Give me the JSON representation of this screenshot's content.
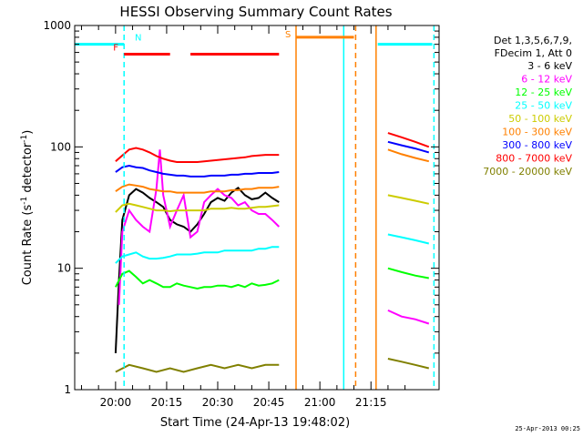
{
  "chart_data": {
    "type": "line",
    "title": "HESSI Observing Summary Count Rates",
    "xlabel": "Start Time (24-Apr-13 19:48:02)",
    "ylabel": "Count Rate (s",
    "ylabel_sup": "-1",
    "ylabel_mid": " detector",
    "ylabel_end": ")",
    "y_scale": "log",
    "ylim": [
      1,
      1000
    ],
    "y_ticks": [
      {
        "value": 1,
        "label": "1"
      },
      {
        "value": 10,
        "label": "10"
      },
      {
        "value": 100,
        "label": "100"
      },
      {
        "value": 1000,
        "label": "1000"
      }
    ],
    "xlim_minutes": [
      -12,
      95
    ],
    "x_ticks": [
      {
        "minutes": 0,
        "label": "20:00"
      },
      {
        "minutes": 15,
        "label": "20:15"
      },
      {
        "minutes": 30,
        "label": "20:30"
      },
      {
        "minutes": 45,
        "label": "20:45"
      },
      {
        "minutes": 60,
        "label": "21:00"
      },
      {
        "minutes": 75,
        "label": "21:15"
      }
    ],
    "legend_header": [
      "Det 1,3,5,6,7,9,",
      "FDecim 1, Att 0"
    ],
    "legend_placement": "top-right",
    "footer": "25-Apr-2013 00:25",
    "series": [
      {
        "name": "3 - 6 keV",
        "color": "#000000",
        "points": [
          [
            0,
            2
          ],
          [
            1,
            8
          ],
          [
            2,
            25
          ],
          [
            4,
            40
          ],
          [
            6,
            45
          ],
          [
            8,
            42
          ],
          [
            10,
            38
          ],
          [
            12,
            35
          ],
          [
            14,
            32
          ],
          [
            16,
            25
          ],
          [
            18,
            23
          ],
          [
            20,
            22
          ],
          [
            22,
            20
          ],
          [
            24,
            23
          ],
          [
            26,
            28
          ],
          [
            28,
            35
          ],
          [
            30,
            38
          ],
          [
            32,
            36
          ],
          [
            34,
            42
          ],
          [
            36,
            46
          ],
          [
            38,
            40
          ],
          [
            40,
            37
          ],
          [
            42,
            38
          ],
          [
            44,
            42
          ],
          [
            46,
            38
          ],
          [
            48,
            35
          ]
        ]
      },
      {
        "name": "6 - 12 keV",
        "color": "#ff00ff",
        "points": [
          [
            1,
            5
          ],
          [
            2,
            20
          ],
          [
            4,
            30
          ],
          [
            6,
            25
          ],
          [
            8,
            22
          ],
          [
            10,
            20
          ],
          [
            12,
            45
          ],
          [
            13,
            95
          ],
          [
            14,
            40
          ],
          [
            16,
            22
          ],
          [
            18,
            30
          ],
          [
            20,
            40
          ],
          [
            22,
            18
          ],
          [
            24,
            20
          ],
          [
            26,
            35
          ],
          [
            28,
            40
          ],
          [
            30,
            45
          ],
          [
            32,
            40
          ],
          [
            34,
            38
          ],
          [
            36,
            33
          ],
          [
            38,
            35
          ],
          [
            40,
            30
          ],
          [
            42,
            28
          ],
          [
            44,
            28
          ],
          [
            46,
            25
          ],
          [
            48,
            22
          ]
        ]
      },
      {
        "name": "12 - 25 keV",
        "color": "#00ff00",
        "points": [
          [
            0,
            7
          ],
          [
            2,
            9
          ],
          [
            4,
            9.5
          ],
          [
            6,
            8.5
          ],
          [
            8,
            7.5
          ],
          [
            10,
            8
          ],
          [
            12,
            7.5
          ],
          [
            14,
            7
          ],
          [
            16,
            7
          ],
          [
            18,
            7.5
          ],
          [
            20,
            7.2
          ],
          [
            22,
            7
          ],
          [
            24,
            6.8
          ],
          [
            26,
            7
          ],
          [
            28,
            7
          ],
          [
            30,
            7.2
          ],
          [
            32,
            7.2
          ],
          [
            34,
            7
          ],
          [
            36,
            7.3
          ],
          [
            38,
            7
          ],
          [
            40,
            7.5
          ],
          [
            42,
            7.2
          ],
          [
            44,
            7.3
          ],
          [
            46,
            7.5
          ],
          [
            48,
            8
          ]
        ]
      },
      {
        "name": "25 - 50 keV",
        "color": "#00ffff",
        "points": [
          [
            0,
            11
          ],
          [
            2,
            12.5
          ],
          [
            4,
            13
          ],
          [
            6,
            13.5
          ],
          [
            8,
            12.5
          ],
          [
            10,
            12
          ],
          [
            12,
            12
          ],
          [
            14,
            12.2
          ],
          [
            16,
            12.5
          ],
          [
            18,
            13
          ],
          [
            20,
            13
          ],
          [
            22,
            13
          ],
          [
            24,
            13.2
          ],
          [
            26,
            13.5
          ],
          [
            28,
            13.5
          ],
          [
            30,
            13.5
          ],
          [
            32,
            14
          ],
          [
            34,
            14
          ],
          [
            36,
            14
          ],
          [
            38,
            14
          ],
          [
            40,
            14
          ],
          [
            42,
            14.5
          ],
          [
            44,
            14.5
          ],
          [
            46,
            15
          ],
          [
            48,
            15
          ]
        ]
      },
      {
        "name": "50 - 100 keV",
        "color": "#cccc00",
        "points": [
          [
            0,
            29
          ],
          [
            2,
            33
          ],
          [
            4,
            34
          ],
          [
            6,
            33
          ],
          [
            8,
            32
          ],
          [
            10,
            31
          ],
          [
            12,
            30
          ],
          [
            14,
            30
          ],
          [
            16,
            29.5
          ],
          [
            18,
            30
          ],
          [
            20,
            30
          ],
          [
            22,
            30
          ],
          [
            24,
            30
          ],
          [
            26,
            30
          ],
          [
            28,
            31
          ],
          [
            30,
            31
          ],
          [
            32,
            31
          ],
          [
            34,
            31.5
          ],
          [
            36,
            31
          ],
          [
            38,
            31
          ],
          [
            40,
            31.5
          ],
          [
            42,
            32
          ],
          [
            44,
            32
          ],
          [
            46,
            32.5
          ],
          [
            48,
            33
          ]
        ]
      },
      {
        "name": "100 - 300 keV",
        "color": "#ff8000",
        "points": [
          [
            0,
            43
          ],
          [
            2,
            47
          ],
          [
            4,
            49
          ],
          [
            6,
            48
          ],
          [
            8,
            47
          ],
          [
            10,
            45
          ],
          [
            12,
            44
          ],
          [
            14,
            43
          ],
          [
            16,
            43
          ],
          [
            18,
            42
          ],
          [
            20,
            42
          ],
          [
            22,
            42
          ],
          [
            24,
            42
          ],
          [
            26,
            42
          ],
          [
            28,
            43
          ],
          [
            30,
            43
          ],
          [
            32,
            43
          ],
          [
            34,
            44
          ],
          [
            36,
            44
          ],
          [
            38,
            45
          ],
          [
            40,
            45
          ],
          [
            42,
            46
          ],
          [
            44,
            46
          ],
          [
            46,
            46
          ],
          [
            48,
            47
          ]
        ]
      },
      {
        "name": "300 - 800 keV",
        "color": "#0000ff",
        "points": [
          [
            0,
            62
          ],
          [
            2,
            68
          ],
          [
            4,
            70
          ],
          [
            6,
            68
          ],
          [
            8,
            67
          ],
          [
            10,
            64
          ],
          [
            12,
            62
          ],
          [
            14,
            60
          ],
          [
            16,
            59
          ],
          [
            18,
            58
          ],
          [
            20,
            58
          ],
          [
            22,
            57
          ],
          [
            24,
            57
          ],
          [
            26,
            57
          ],
          [
            28,
            58
          ],
          [
            30,
            58
          ],
          [
            32,
            58
          ],
          [
            34,
            59
          ],
          [
            36,
            59
          ],
          [
            38,
            60
          ],
          [
            40,
            60
          ],
          [
            42,
            61
          ],
          [
            44,
            61
          ],
          [
            46,
            61
          ],
          [
            48,
            62
          ]
        ]
      },
      {
        "name": "800 - 7000 keV",
        "color": "#ff0000",
        "points": [
          [
            0,
            76
          ],
          [
            2,
            85
          ],
          [
            4,
            95
          ],
          [
            6,
            98
          ],
          [
            8,
            95
          ],
          [
            10,
            90
          ],
          [
            12,
            84
          ],
          [
            14,
            80
          ],
          [
            16,
            77
          ],
          [
            18,
            75
          ],
          [
            20,
            75
          ],
          [
            22,
            75
          ],
          [
            24,
            75
          ],
          [
            26,
            76
          ],
          [
            28,
            77
          ],
          [
            30,
            78
          ],
          [
            32,
            79
          ],
          [
            34,
            80
          ],
          [
            36,
            81
          ],
          [
            38,
            82
          ],
          [
            40,
            84
          ],
          [
            42,
            85
          ],
          [
            44,
            86
          ],
          [
            46,
            86
          ],
          [
            48,
            86
          ]
        ]
      },
      {
        "name": "7000 - 20000 keV",
        "color": "#808000",
        "points": [
          [
            0,
            1.4
          ],
          [
            4,
            1.6
          ],
          [
            8,
            1.5
          ],
          [
            12,
            1.4
          ],
          [
            16,
            1.5
          ],
          [
            20,
            1.4
          ],
          [
            24,
            1.5
          ],
          [
            28,
            1.6
          ],
          [
            32,
            1.5
          ],
          [
            36,
            1.6
          ],
          [
            40,
            1.5
          ],
          [
            44,
            1.6
          ],
          [
            48,
            1.6
          ]
        ]
      }
    ],
    "series_after_gap": [
      {
        "color": "#ff0000",
        "points": [
          [
            80,
            130
          ],
          [
            84,
            120
          ],
          [
            88,
            110
          ],
          [
            92,
            100
          ]
        ]
      },
      {
        "color": "#0000ff",
        "points": [
          [
            80,
            110
          ],
          [
            84,
            103
          ],
          [
            88,
            97
          ],
          [
            92,
            90
          ]
        ]
      },
      {
        "color": "#ff8000",
        "points": [
          [
            80,
            95
          ],
          [
            84,
            87
          ],
          [
            88,
            81
          ],
          [
            92,
            76
          ]
        ]
      },
      {
        "color": "#cccc00",
        "points": [
          [
            80,
            40
          ],
          [
            84,
            38
          ],
          [
            88,
            36
          ],
          [
            92,
            34
          ]
        ]
      },
      {
        "color": "#00ffff",
        "points": [
          [
            80,
            19
          ],
          [
            84,
            18
          ],
          [
            88,
            17
          ],
          [
            92,
            16
          ]
        ]
      },
      {
        "color": "#00ff00",
        "points": [
          [
            80,
            10
          ],
          [
            84,
            9.3
          ],
          [
            88,
            8.7
          ],
          [
            92,
            8.3
          ]
        ]
      },
      {
        "color": "#ff00ff",
        "points": [
          [
            80,
            4.5
          ],
          [
            84,
            4
          ],
          [
            88,
            3.8
          ],
          [
            92,
            3.5
          ]
        ]
      },
      {
        "color": "#808000",
        "points": [
          [
            80,
            1.8
          ],
          [
            84,
            1.7
          ],
          [
            88,
            1.6
          ],
          [
            92,
            1.5
          ]
        ]
      }
    ],
    "flags": [
      {
        "label": "N",
        "color": "#00ffff",
        "spans": [
          [
            -12,
            2.5
          ],
          [
            77,
            93
          ]
        ],
        "level": 700
      },
      {
        "label": "F",
        "color": "#ff0000",
        "spans": [
          [
            2.5,
            16
          ],
          [
            22,
            48
          ]
        ],
        "level": 580
      },
      {
        "label": "S",
        "color": "#ff8000",
        "spans": [
          [
            53,
            70
          ]
        ],
        "level": 800
      }
    ],
    "markers": [
      {
        "minutes": 2.5,
        "color": "#00ffff",
        "style": "dashed"
      },
      {
        "minutes": 53,
        "color": "#ff8000",
        "style": "solid"
      },
      {
        "minutes": 67,
        "color": "#00ffff",
        "style": "solid"
      },
      {
        "minutes": 70.5,
        "color": "#ff8000",
        "style": "dashed"
      },
      {
        "minutes": 76.5,
        "color": "#ff8000",
        "style": "solid"
      },
      {
        "minutes": 93.5,
        "color": "#00ffff",
        "style": "dashed"
      }
    ]
  }
}
